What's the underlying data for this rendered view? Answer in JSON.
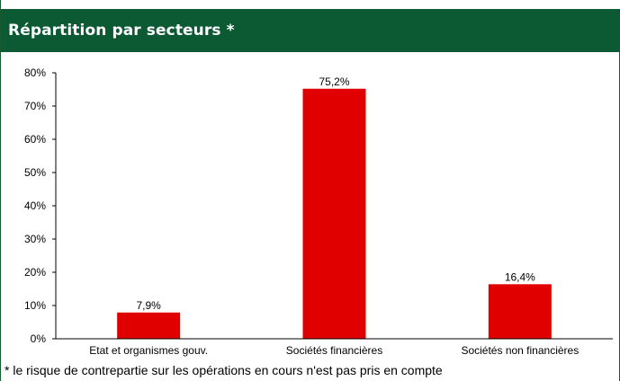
{
  "header": {
    "title": "Répartition par secteurs *"
  },
  "footnote": "* le risque de contrepartie sur les opérations en cours n'est pas pris en compte",
  "colors": {
    "header_bg": "#0b5a34",
    "bar": "#e00000",
    "axis": "#000000"
  },
  "chart_data": {
    "type": "bar",
    "title": "Répartition par secteurs *",
    "categories": [
      "Etat et organismes gouv.",
      "Sociétés financières",
      "Sociétés non financières"
    ],
    "values": [
      7.9,
      75.2,
      16.4
    ],
    "value_labels": [
      "7,9%",
      "75,2%",
      "16,4%"
    ],
    "ylim": [
      0,
      80
    ],
    "yticks": [
      0,
      10,
      20,
      30,
      40,
      50,
      60,
      70,
      80
    ],
    "ytick_labels": [
      "0%",
      "10%",
      "20%",
      "30%",
      "40%",
      "50%",
      "60%",
      "70%",
      "80%"
    ],
    "grid": false,
    "legend": "none"
  }
}
